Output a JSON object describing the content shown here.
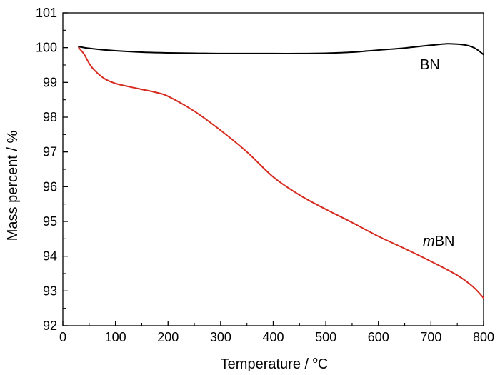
{
  "chart_data": {
    "type": "line",
    "title": "",
    "xlabel": "Temperature / °C",
    "xlabel_main": "Temperature / ",
    "xlabel_sup": "o",
    "xlabel_unit": "C",
    "ylabel": "Mass percent / %",
    "xlim": [
      0,
      800
    ],
    "ylim": [
      92,
      101
    ],
    "xticks": [
      0,
      100,
      200,
      300,
      400,
      500,
      600,
      700,
      800
    ],
    "yticks": [
      92,
      93,
      94,
      95,
      96,
      97,
      98,
      99,
      100,
      101
    ],
    "grid": false,
    "series": [
      {
        "name": "BN",
        "color": "#000000",
        "x": [
          30,
          50,
          100,
          150,
          200,
          250,
          300,
          350,
          400,
          450,
          500,
          550,
          600,
          650,
          700,
          730,
          750,
          770,
          785,
          800
        ],
        "y": [
          100.03,
          99.98,
          99.91,
          99.87,
          99.85,
          99.84,
          99.83,
          99.83,
          99.83,
          99.83,
          99.84,
          99.87,
          99.93,
          99.99,
          100.07,
          100.11,
          100.1,
          100.06,
          99.97,
          99.8
        ]
      },
      {
        "name": "mBN",
        "name_italic": "m",
        "name_rest": "BN",
        "color": "#d62a1f",
        "x": [
          30,
          40,
          50,
          60,
          80,
          100,
          125,
          150,
          175,
          200,
          250,
          300,
          350,
          400,
          450,
          500,
          550,
          600,
          650,
          700,
          750,
          780,
          800
        ],
        "y": [
          100.0,
          99.82,
          99.55,
          99.35,
          99.1,
          98.97,
          98.88,
          98.8,
          98.72,
          98.6,
          98.17,
          97.62,
          97.0,
          96.28,
          95.76,
          95.35,
          94.97,
          94.57,
          94.22,
          93.85,
          93.45,
          93.12,
          92.8
        ]
      }
    ]
  }
}
